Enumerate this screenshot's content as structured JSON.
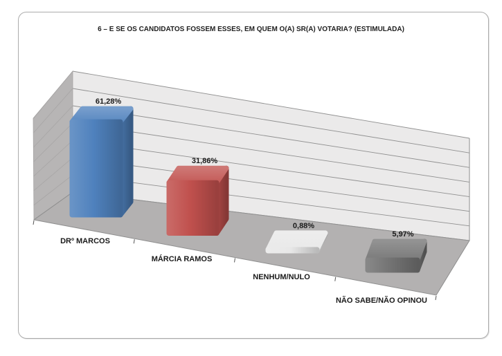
{
  "chart_data": {
    "type": "bar",
    "projection": "3d-perspective",
    "title": "6 – E SE OS CANDIDATOS FOSSEM ESSES, EM QUEM O(A) SR(A) VOTARIA? (ESTIMULADA)",
    "categories": [
      "DRº MARCOS",
      "MÁRCIA RAMOS",
      "NENHUM/NULO",
      "NÃO SABE/NÃO OPINOU"
    ],
    "values": [
      61.28,
      31.86,
      0.88,
      5.97
    ],
    "value_labels": [
      "61,28%",
      "31,86%",
      "0,88%",
      "5,97%"
    ],
    "series_colors": [
      "#4f81bd",
      "#c0504d",
      "#e8e8e8",
      "#737373"
    ],
    "ylim": [
      0,
      70
    ],
    "gridline_step": 10,
    "gridlines": true,
    "legend": "none",
    "colors": {
      "background": "#ffffff",
      "frame_border": "#ababab",
      "back_wall": "#ebeaea",
      "gridline": "#8f8f8f",
      "side_wall": "#b7b5b5",
      "side_wall_line": "#a7a5a5",
      "floor": "#b3b1b1",
      "scene_edge": "#8e8e8e",
      "tick": "#555555",
      "label": "#1a1a1a",
      "title": "#1f1f1f"
    }
  }
}
